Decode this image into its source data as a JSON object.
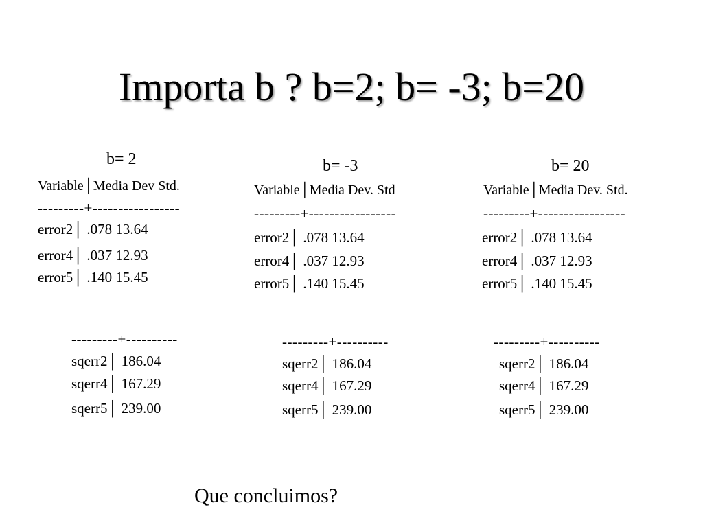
{
  "title": "Importa b ?  b=2; b= -3; b=20",
  "columns": [
    {
      "heading": "b= 2",
      "header": "Variable│Media  Dev Std.",
      "separator1": "---------+-----------------",
      "rows": [
        "error2│  .078   13.64",
        "error4│  .037   12.93",
        "error5│  .140   15.45"
      ],
      "separator2": "---------+----------",
      "sq_rows": [
        "sqerr2│  186.04",
        "sqerr4│  167.29",
        "sqerr5│  239.00"
      ]
    },
    {
      "heading": "b= -3",
      "header": "Variable│Media  Dev. Std",
      "separator1": "---------+-----------------",
      "rows": [
        "error2│  .078   13.64",
        "error4│  .037   12.93",
        "error5│  .140   15.45"
      ],
      "separator2": "---------+----------",
      "sq_rows": [
        "sqerr2│  186.04",
        "sqerr4│  167.29",
        "sqerr5│  239.00"
      ]
    },
    {
      "heading": "b= 20",
      "header": "Variable│Media  Dev. Std.",
      "separator1": "---------+-----------------",
      "rows": [
        "error2│  .078   13.64",
        "error4│  .037   12.93",
        "error5│  .140   15.45"
      ],
      "separator2": "---------+----------",
      "sq_rows": [
        "sqerr2│  186.04",
        "sqerr4│  167.29",
        "sqerr5│  239.00"
      ]
    }
  ],
  "conclusion": "Que concluimos?"
}
